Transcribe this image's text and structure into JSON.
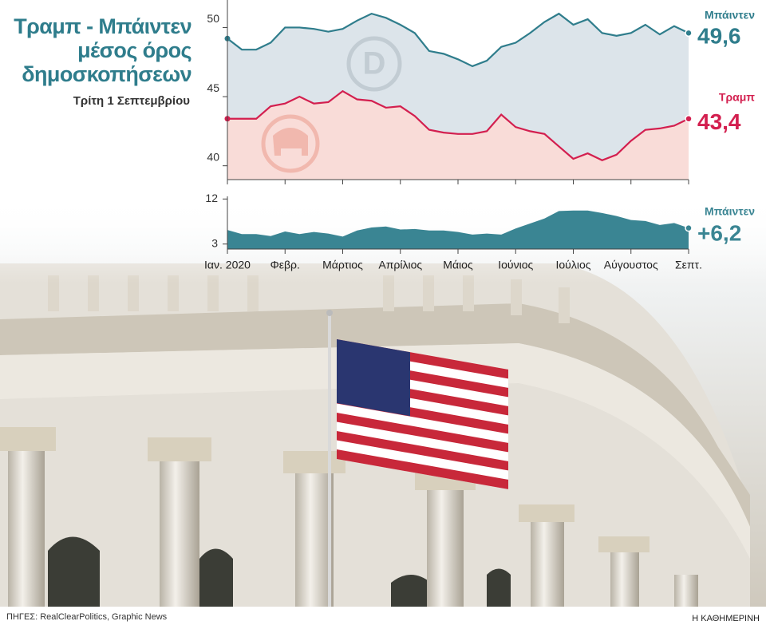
{
  "chart_data": [
    {
      "type": "line",
      "title": "Τραμπ - Μπάιντεν μέσος όρος δημοσκοπήσεων",
      "subtitle": "Τρίτη 1 Σεπτεμβρίου",
      "categories": [
        "Ιαν. 2020",
        null,
        null,
        null,
        "Φεβρ.",
        null,
        null,
        null,
        "Μάρτιος",
        null,
        null,
        null,
        "Απρίλιος",
        null,
        null,
        null,
        "Μάιος",
        null,
        null,
        null,
        "Ιούνιος",
        null,
        null,
        null,
        "Ιούλιος",
        null,
        null,
        null,
        "Αύγουστος",
        null,
        null,
        null,
        "Σεπτ."
      ],
      "ylim": [
        39,
        51.7
      ],
      "yticks": [
        40,
        45,
        50
      ],
      "series": [
        {
          "name": "Μπάιντεν",
          "color": "#2f7d8c",
          "fill": "#dce4ea",
          "values": [
            49.2,
            48.4,
            48.4,
            48.9,
            50.0,
            50.0,
            49.9,
            49.7,
            49.9,
            50.5,
            51.0,
            50.7,
            50.2,
            49.6,
            48.3,
            48.1,
            47.7,
            47.2,
            47.6,
            48.6,
            48.9,
            49.6,
            50.4,
            51.0,
            50.2,
            50.6,
            49.6,
            49.4,
            49.6,
            50.2,
            49.5,
            50.1,
            49.6
          ],
          "value_labels": [
            null,
            null,
            null,
            null,
            null,
            null,
            null,
            null,
            null,
            null,
            null,
            null,
            null,
            null,
            null,
            null,
            null,
            null,
            null,
            null,
            null,
            null,
            null,
            null,
            null,
            null,
            null,
            null,
            null,
            null,
            null,
            null,
            "49,6"
          ]
        },
        {
          "name": "Τραμπ",
          "color": "#d31f4f",
          "fill": "#f9dcd8",
          "values": [
            43.4,
            43.4,
            43.4,
            44.3,
            44.5,
            45.0,
            44.5,
            44.6,
            45.4,
            44.8,
            44.7,
            44.2,
            44.3,
            43.6,
            42.6,
            42.4,
            42.3,
            42.3,
            42.5,
            43.7,
            42.8,
            42.5,
            42.3,
            41.4,
            40.5,
            40.9,
            40.4,
            40.8,
            41.8,
            42.6,
            42.7,
            42.9,
            43.4
          ],
          "value_labels": [
            null,
            null,
            null,
            null,
            null,
            null,
            null,
            null,
            null,
            null,
            null,
            null,
            null,
            null,
            null,
            null,
            null,
            null,
            null,
            null,
            null,
            null,
            null,
            null,
            null,
            null,
            null,
            null,
            null,
            null,
            null,
            null,
            "43,4"
          ]
        }
      ]
    },
    {
      "type": "area",
      "ylim": [
        2,
        12
      ],
      "yticks": [
        3,
        12
      ],
      "series": [
        {
          "name": "Μπάιντεν",
          "color": "#3a8593",
          "values": [
            5.8,
            5.0,
            5.0,
            4.6,
            5.5,
            5.0,
            5.4,
            5.1,
            4.5,
            5.7,
            6.3,
            6.5,
            5.9,
            6.0,
            5.7,
            5.7,
            5.4,
            4.9,
            5.1,
            4.9,
            6.1,
            7.1,
            8.1,
            9.6,
            9.7,
            9.7,
            9.2,
            8.6,
            7.8,
            7.6,
            6.8,
            7.2,
            6.2
          ],
          "value_labels": [
            null,
            null,
            null,
            null,
            null,
            null,
            null,
            null,
            null,
            null,
            null,
            null,
            null,
            null,
            null,
            null,
            null,
            null,
            null,
            null,
            null,
            null,
            null,
            null,
            null,
            null,
            null,
            null,
            null,
            null,
            null,
            null,
            "+6,2"
          ]
        }
      ]
    }
  ],
  "source": "ΠΗΓΕΣ: RealClearPolitics, Graphic News",
  "credit": "Η ΚΑΘΗΜΕΡΙΝΗ"
}
